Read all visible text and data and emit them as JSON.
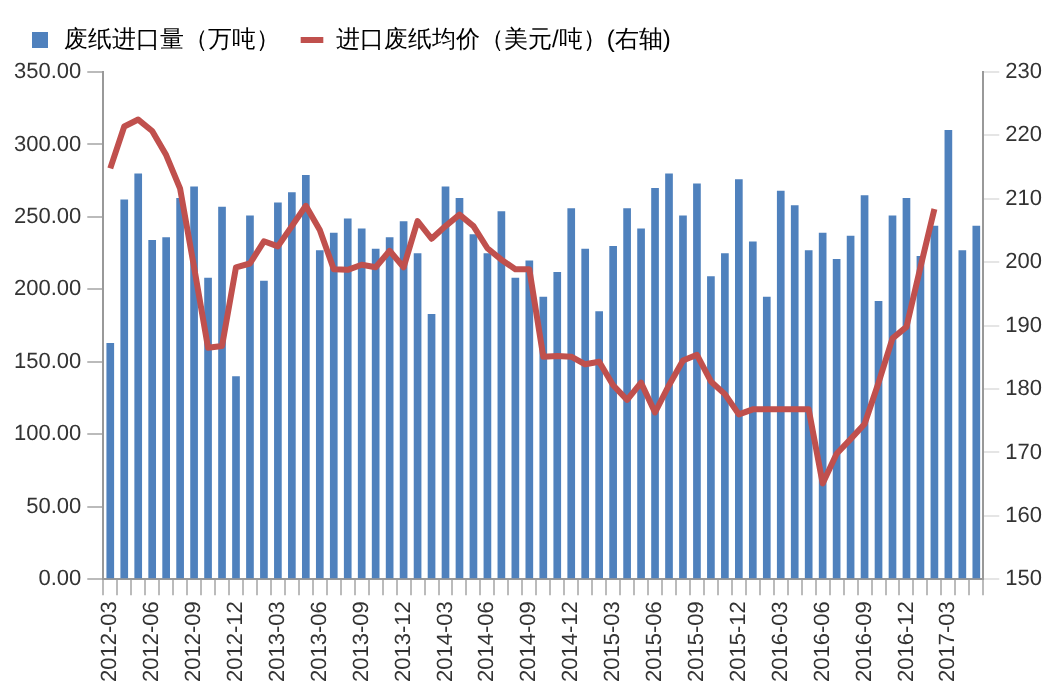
{
  "chart_data": {
    "type": "bar",
    "categories": [
      "2012-03",
      null,
      null,
      "2012-06",
      null,
      null,
      "2012-09",
      null,
      null,
      "2012-12",
      null,
      null,
      "2013-03",
      null,
      null,
      "2013-06",
      null,
      null,
      "2013-09",
      null,
      null,
      "2013-12",
      null,
      null,
      "2014-03",
      null,
      null,
      "2014-06",
      null,
      null,
      "2014-09",
      null,
      null,
      "2014-12",
      null,
      null,
      "2015-03",
      null,
      null,
      "2015-06",
      null,
      null,
      "2015-09",
      null,
      null,
      "2015-12",
      null,
      null,
      "2016-03",
      null,
      null,
      "2016-06",
      null,
      null,
      "2016-09",
      null,
      null,
      "2016-12",
      null,
      null,
      "2017-03",
      null,
      null
    ],
    "series": [
      {
        "name": "废纸进口量（万吨）",
        "color": "#4f81bd",
        "values": [
          163,
          262,
          280,
          234,
          236,
          263,
          271,
          208,
          257,
          140,
          251,
          206,
          260,
          267,
          279,
          227,
          239,
          249,
          242,
          228,
          236,
          247,
          225,
          183,
          271,
          263,
          238,
          225,
          254,
          208,
          220,
          195,
          212,
          256,
          228,
          185,
          230,
          256,
          242,
          270,
          280,
          251,
          273,
          209,
          225,
          276,
          233,
          195,
          268,
          258,
          227,
          239,
          221,
          237,
          265,
          192,
          251,
          263,
          223,
          244,
          310,
          227,
          244
        ]
      },
      {
        "name": "进口废纸均价（美元/吨）(右轴)",
        "type": "line",
        "axis": "y2",
        "color": "#c0504d",
        "values": [
          214.8,
          221.4,
          222.5,
          220.7,
          216.9,
          211.6,
          199.2,
          186.5,
          186.8,
          199.2,
          199.8,
          203.3,
          202.5,
          205.7,
          208.9,
          205.1,
          198.9,
          198.8,
          199.6,
          199.2,
          201.8,
          199.2,
          206.5,
          203.7,
          205.7,
          207.5,
          205.7,
          202.2,
          200.4,
          198.9,
          198.9,
          185.1,
          185.2,
          185.1,
          183.9,
          184.3,
          180.6,
          178.3,
          181.0,
          176.3,
          180.6,
          184.5,
          185.4,
          181.2,
          179.2,
          176.0,
          176.8,
          176.8,
          176.8,
          176.8,
          176.8,
          165.1,
          169.8,
          172.1,
          174.5,
          181.0,
          188.0,
          189.8,
          199.2,
          208.4,
          null,
          null,
          null
        ]
      }
    ],
    "ylim": [
      0,
      350
    ],
    "yticks": [
      {
        "value": 0,
        "label": "0.00"
      },
      {
        "value": 50,
        "label": "50.00"
      },
      {
        "value": 100,
        "label": "100.00"
      },
      {
        "value": 150,
        "label": "150.00"
      },
      {
        "value": 200,
        "label": "200.00"
      },
      {
        "value": 250,
        "label": "250.00"
      },
      {
        "value": 300,
        "label": "300.00"
      },
      {
        "value": 350,
        "label": "350.00"
      }
    ],
    "y2lim": [
      150,
      230
    ],
    "y2ticks": [
      150,
      160,
      170,
      180,
      190,
      200,
      210,
      220,
      230
    ],
    "legend": "top",
    "grid": false,
    "marker": "none"
  }
}
